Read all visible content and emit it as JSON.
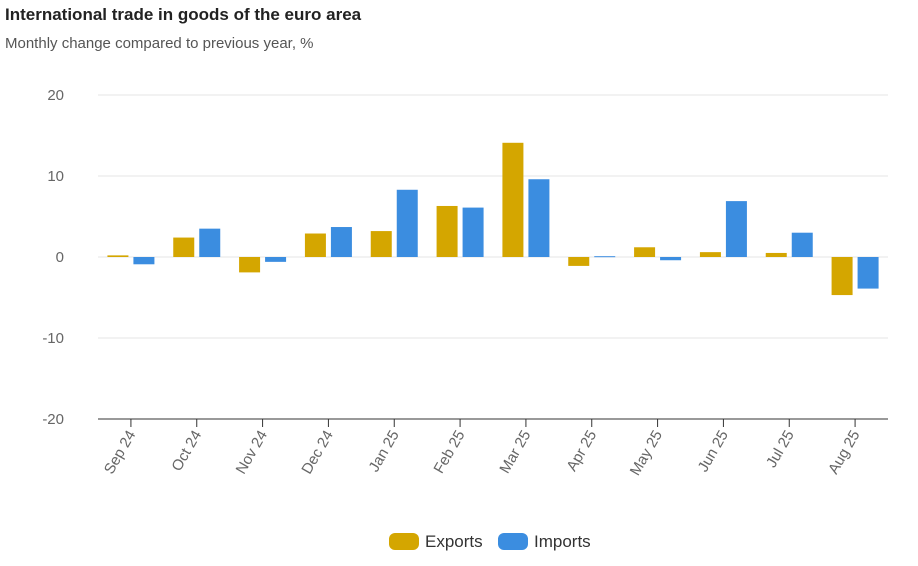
{
  "chart_data": {
    "type": "bar",
    "title": "International trade in goods of the euro area",
    "subtitle": "Monthly change compared to previous year, %",
    "categories": [
      "Sep 24",
      "Oct 24",
      "Nov 24",
      "Dec 24",
      "Jan 25",
      "Feb 25",
      "Mar 25",
      "Apr 25",
      "May 25",
      "Jun 25",
      "Jul 25",
      "Aug 25"
    ],
    "series": [
      {
        "name": "Exports",
        "color": "#d4a600",
        "values": [
          0.2,
          2.4,
          -1.9,
          2.9,
          3.2,
          6.3,
          14.1,
          -1.1,
          1.2,
          0.6,
          0.5,
          -4.7
        ]
      },
      {
        "name": "Imports",
        "color": "#3b8de0",
        "values": [
          -0.9,
          3.5,
          -0.6,
          3.7,
          8.3,
          6.1,
          9.6,
          0.1,
          -0.4,
          6.9,
          3.0,
          -3.9
        ]
      }
    ],
    "ylim": [
      -20,
      20
    ],
    "yticks": [
      20,
      10,
      0,
      -10,
      -20
    ],
    "grid": true,
    "legend": "bottom-center"
  }
}
